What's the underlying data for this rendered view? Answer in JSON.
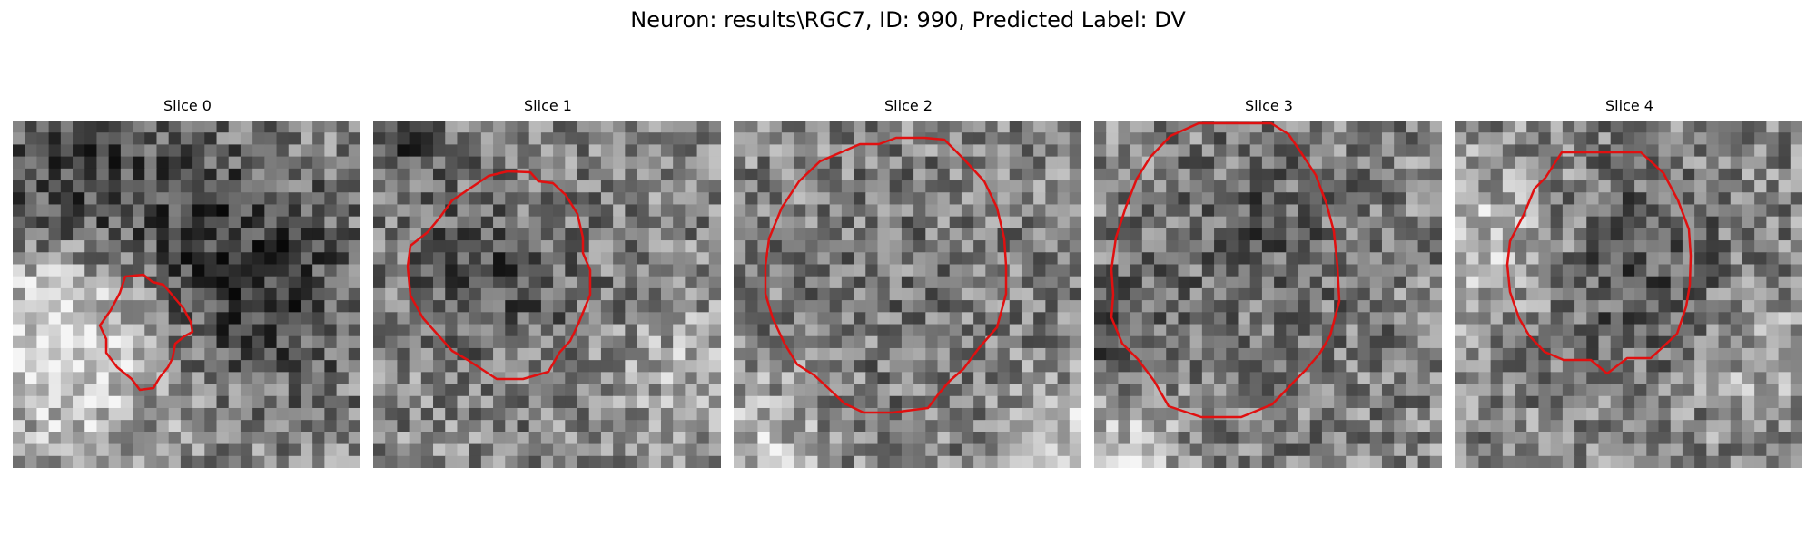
{
  "figure": {
    "title": "Neuron: results\\RGC7, ID: 990, Predicted Label: DV",
    "contour_color": "#ff0000"
  },
  "panels": [
    {
      "title": "Slice 0"
    },
    {
      "title": "Slice 1"
    },
    {
      "title": "Slice 2"
    },
    {
      "title": "Slice 3"
    },
    {
      "title": "Slice 4"
    }
  ]
}
